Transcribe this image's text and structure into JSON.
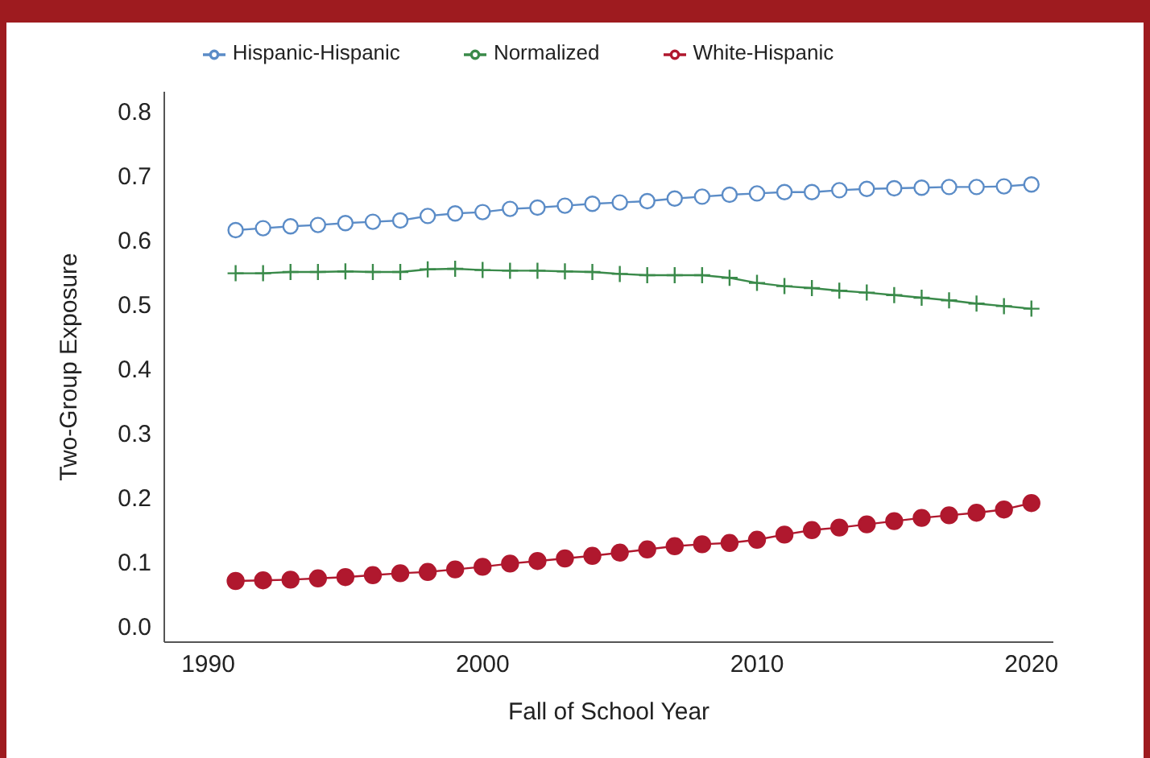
{
  "chart_data": {
    "type": "line",
    "xlabel": "Fall of School Year",
    "ylabel": "Two-Group Exposure",
    "x": [
      1991,
      1992,
      1993,
      1994,
      1995,
      1996,
      1997,
      1998,
      1999,
      2000,
      2001,
      2002,
      2003,
      2004,
      2005,
      2006,
      2007,
      2008,
      2009,
      2010,
      2011,
      2012,
      2013,
      2014,
      2015,
      2016,
      2017,
      2018,
      2019,
      2020
    ],
    "series": [
      {
        "name": "Hispanic-Hispanic",
        "color": "#5b8cc7",
        "marker": "circle",
        "values": [
          0.615,
          0.618,
          0.621,
          0.623,
          0.626,
          0.628,
          0.63,
          0.637,
          0.641,
          0.643,
          0.648,
          0.65,
          0.653,
          0.656,
          0.658,
          0.66,
          0.664,
          0.667,
          0.67,
          0.672,
          0.674,
          0.674,
          0.677,
          0.679,
          0.68,
          0.681,
          0.682,
          0.682,
          0.683,
          0.686
        ]
      },
      {
        "name": "White-Hispanic",
        "color": "#b0182e",
        "marker": "circle",
        "values": [
          0.07,
          0.071,
          0.072,
          0.074,
          0.076,
          0.079,
          0.082,
          0.084,
          0.088,
          0.092,
          0.097,
          0.101,
          0.105,
          0.109,
          0.114,
          0.119,
          0.124,
          0.127,
          0.129,
          0.134,
          0.142,
          0.149,
          0.153,
          0.158,
          0.163,
          0.168,
          0.172,
          0.176,
          0.181,
          0.191
        ]
      },
      {
        "name": "Normalized",
        "color": "#3a8a4a",
        "marker": "cross",
        "values": [
          0.548,
          0.548,
          0.55,
          0.55,
          0.551,
          0.55,
          0.55,
          0.554,
          0.555,
          0.553,
          0.552,
          0.552,
          0.551,
          0.55,
          0.547,
          0.545,
          0.545,
          0.545,
          0.541,
          0.533,
          0.528,
          0.525,
          0.521,
          0.518,
          0.514,
          0.51,
          0.506,
          0.501,
          0.497,
          0.493
        ]
      }
    ],
    "xlim": [
      1988.4,
      2020.8
    ],
    "xticks": [
      1990,
      2000,
      2010,
      2020
    ],
    "ylim": [
      -0.025,
      0.83
    ],
    "yticks": [
      {
        "value": 0,
        "label": "0.0"
      },
      {
        "value": 0.1,
        "label": "0.1"
      },
      {
        "value": 0.2,
        "label": "0.2"
      },
      {
        "value": 0.3,
        "label": "0.3"
      },
      {
        "value": 0.4,
        "label": "0.4"
      },
      {
        "value": 0.5,
        "label": "0.5"
      },
      {
        "value": 0.6,
        "label": "0.6"
      },
      {
        "value": 0.7,
        "label": "0.7"
      },
      {
        "value": 0.8,
        "label": "0.8"
      }
    ],
    "grid": false,
    "legend": "top",
    "line_style": "solid"
  }
}
